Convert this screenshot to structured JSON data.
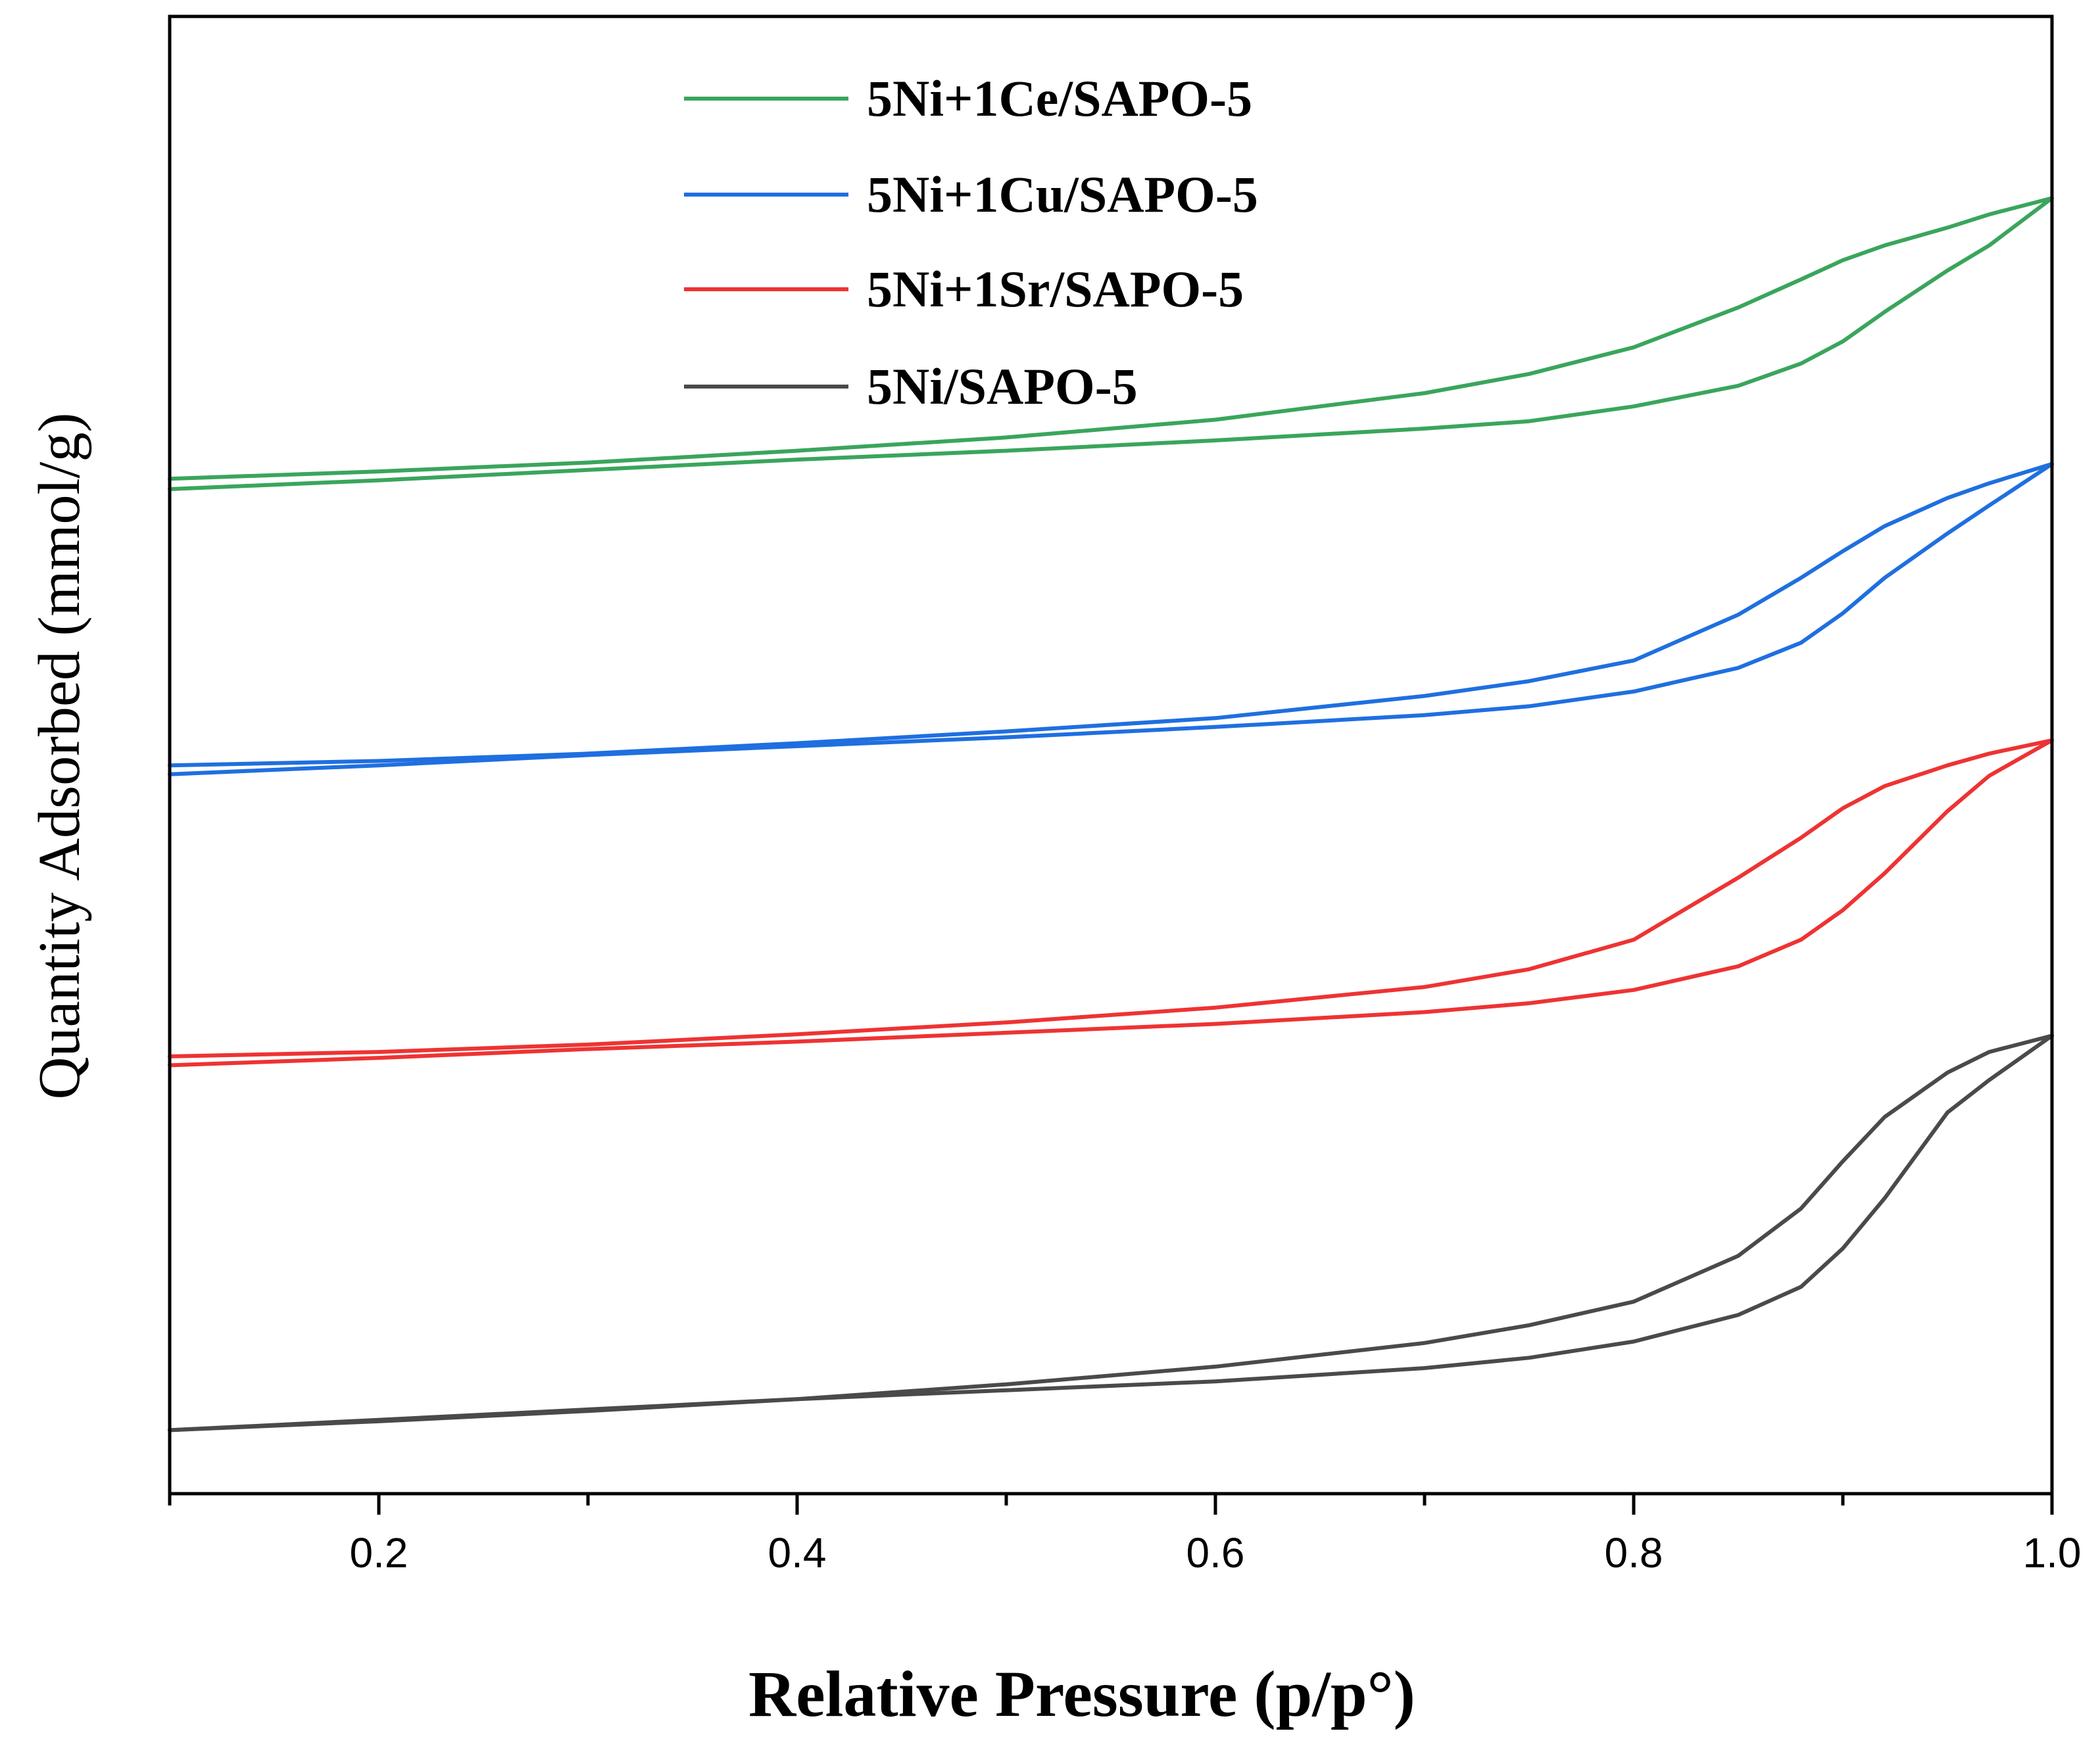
{
  "chart_data": {
    "type": "line",
    "title": "",
    "xlabel": "Relative Pressure (p/p°)",
    "ylabel": "Quantity Adsorbed (mmol/g)",
    "xlim": [
      0.1,
      1.0
    ],
    "ylim": [
      0,
      100
    ],
    "y_ticks_shown": false,
    "x_major_ticks": [
      0.2,
      0.4,
      0.6,
      0.8,
      1.0
    ],
    "x_minor_ticks": [
      0.1,
      0.3,
      0.5,
      0.7,
      0.9
    ],
    "x_tick_labels": [
      "0.2",
      "0.4",
      "0.6",
      "0.8",
      "1.0"
    ],
    "legend_position": "top-center",
    "series": [
      {
        "name": "5Ni+1Ce/SAPO-5",
        "color": "#3aa55c",
        "adsorption": {
          "x": [
            0.1,
            0.2,
            0.3,
            0.4,
            0.5,
            0.6,
            0.7,
            0.75,
            0.8,
            0.85,
            0.88,
            0.9,
            0.92,
            0.95,
            0.97,
            1.0
          ],
          "y": [
            68.0,
            68.6,
            69.3,
            70.0,
            70.6,
            71.3,
            72.1,
            72.6,
            73.6,
            75.0,
            76.5,
            78.0,
            80.0,
            82.8,
            84.5,
            87.7
          ]
        },
        "desorption": {
          "x": [
            1.0,
            0.97,
            0.95,
            0.92,
            0.9,
            0.88,
            0.85,
            0.8,
            0.75,
            0.7,
            0.6,
            0.5,
            0.4,
            0.3,
            0.2,
            0.1
          ],
          "y": [
            87.7,
            86.6,
            85.7,
            84.5,
            83.5,
            82.2,
            80.3,
            77.6,
            75.8,
            74.5,
            72.7,
            71.5,
            70.6,
            69.8,
            69.2,
            68.7
          ]
        }
      },
      {
        "name": "5Ni+1Cu/SAPO-5",
        "color": "#1f6fe0",
        "adsorption": {
          "x": [
            0.1,
            0.2,
            0.3,
            0.4,
            0.5,
            0.6,
            0.7,
            0.75,
            0.8,
            0.85,
            0.88,
            0.9,
            0.92,
            0.95,
            0.97,
            1.0
          ],
          "y": [
            48.7,
            49.3,
            50.0,
            50.6,
            51.2,
            51.9,
            52.7,
            53.3,
            54.3,
            55.9,
            57.6,
            59.6,
            62.0,
            65.0,
            66.9,
            69.7
          ]
        },
        "desorption": {
          "x": [
            1.0,
            0.97,
            0.95,
            0.92,
            0.9,
            0.88,
            0.85,
            0.8,
            0.75,
            0.7,
            0.6,
            0.5,
            0.4,
            0.3,
            0.2,
            0.1
          ],
          "y": [
            69.7,
            68.4,
            67.4,
            65.5,
            63.8,
            62.0,
            59.5,
            56.4,
            55.0,
            54.0,
            52.5,
            51.6,
            50.8,
            50.1,
            49.6,
            49.3
          ]
        }
      },
      {
        "name": "5Ni+1Sr/SAPO-5",
        "color": "#ee3333",
        "adsorption": {
          "x": [
            0.1,
            0.2,
            0.3,
            0.4,
            0.5,
            0.6,
            0.7,
            0.75,
            0.8,
            0.85,
            0.88,
            0.9,
            0.92,
            0.95,
            0.97,
            1.0
          ],
          "y": [
            29.0,
            29.5,
            30.1,
            30.6,
            31.2,
            31.8,
            32.6,
            33.2,
            34.1,
            35.7,
            37.5,
            39.5,
            42.0,
            46.2,
            48.6,
            51.0
          ]
        },
        "desorption": {
          "x": [
            1.0,
            0.97,
            0.95,
            0.92,
            0.9,
            0.88,
            0.85,
            0.8,
            0.75,
            0.7,
            0.6,
            0.5,
            0.4,
            0.3,
            0.2,
            0.1
          ],
          "y": [
            51.0,
            50.1,
            49.3,
            47.9,
            46.4,
            44.4,
            41.7,
            37.5,
            35.5,
            34.3,
            32.9,
            31.9,
            31.1,
            30.4,
            29.9,
            29.6
          ]
        }
      },
      {
        "name": "5Ni/SAPO-5",
        "color": "#4a4a4a",
        "adsorption": {
          "x": [
            0.1,
            0.2,
            0.3,
            0.4,
            0.5,
            0.6,
            0.7,
            0.75,
            0.8,
            0.85,
            0.88,
            0.9,
            0.92,
            0.95,
            0.97,
            1.0
          ],
          "y": [
            4.3,
            5.0,
            5.7,
            6.4,
            7.0,
            7.6,
            8.5,
            9.2,
            10.3,
            12.1,
            14.0,
            16.6,
            20.0,
            25.8,
            28.0,
            31.0
          ]
        },
        "desorption": {
          "x": [
            1.0,
            0.97,
            0.95,
            0.92,
            0.9,
            0.88,
            0.85,
            0.8,
            0.75,
            0.7,
            0.6,
            0.5,
            0.4,
            0.3,
            0.2,
            0.1
          ],
          "y": [
            31.0,
            29.9,
            28.5,
            25.5,
            22.5,
            19.3,
            16.1,
            13.0,
            11.4,
            10.2,
            8.6,
            7.4,
            6.4,
            5.6,
            4.9,
            4.3
          ]
        }
      }
    ]
  }
}
